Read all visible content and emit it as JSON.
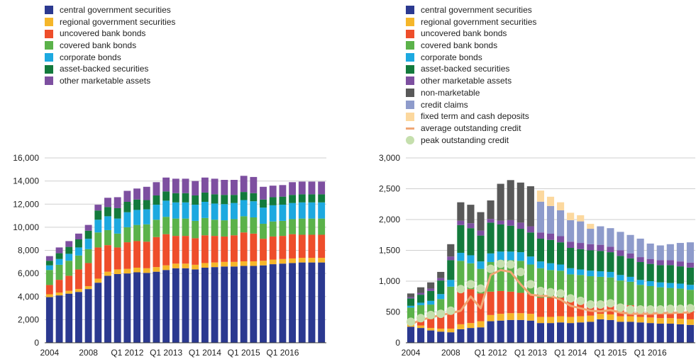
{
  "chart_data": [
    {
      "type": "bar",
      "stacked": true,
      "ylim": [
        0,
        16000
      ],
      "yticks": [
        "0",
        "2,000",
        "4,000",
        "6,000",
        "8,000",
        "10,000",
        "12,000",
        "14,000",
        "16,000"
      ],
      "xtick_labels": [
        {
          "label": "2004",
          "index": 0
        },
        {
          "label": "2008",
          "index": 4
        },
        {
          "label": "Q1 2012",
          "index": 8
        },
        {
          "label": "Q1 2013",
          "index": 12
        },
        {
          "label": "Q1 2014",
          "index": 16
        },
        {
          "label": "Q1 2015",
          "index": 20
        },
        {
          "label": "Q1 2016",
          "index": 24
        }
      ],
      "grid": true,
      "legend_position": "top-left",
      "series": [
        {
          "name": "central government securities",
          "color": "#2B3990",
          "values": [
            3950,
            4100,
            4250,
            4400,
            4650,
            5200,
            5800,
            5950,
            6000,
            6100,
            6050,
            6150,
            6300,
            6450,
            6450,
            6350,
            6500,
            6550,
            6600,
            6600,
            6650,
            6650,
            6700,
            6800,
            6850,
            6900,
            6950,
            6950,
            6950
          ]
        },
        {
          "name": "regional government securities",
          "color": "#F5B62A",
          "values": [
            250,
            250,
            250,
            250,
            250,
            350,
            350,
            400,
            400,
            400,
            400,
            400,
            400,
            400,
            400,
            400,
            400,
            400,
            400,
            400,
            400,
            400,
            400,
            400,
            400,
            400,
            400,
            400,
            400
          ]
        },
        {
          "name": "uncovered bank bonds",
          "color": "#EE4E2B",
          "values": [
            800,
            1100,
            1300,
            1700,
            2000,
            2700,
            2300,
            1900,
            2300,
            2300,
            2300,
            2600,
            2700,
            2400,
            2400,
            2300,
            2400,
            2300,
            2200,
            2300,
            2500,
            2400,
            1900,
            2000,
            2000,
            2100,
            2000,
            2000,
            2000
          ]
        },
        {
          "name": "covered bank bonds",
          "color": "#5BB24A",
          "values": [
            1300,
            1300,
            1300,
            1200,
            1200,
            1300,
            1300,
            1200,
            1300,
            1400,
            1500,
            1500,
            1500,
            1500,
            1500,
            1500,
            1500,
            1400,
            1400,
            1400,
            1400,
            1400,
            1300,
            1300,
            1300,
            1300,
            1400,
            1400,
            1400
          ]
        },
        {
          "name": "corporate bonds",
          "color": "#1DA9E0",
          "values": [
            400,
            500,
            600,
            700,
            900,
            1100,
            1200,
            1300,
            1300,
            1300,
            1300,
            1300,
            1400,
            1400,
            1400,
            1400,
            1400,
            1400,
            1400,
            1400,
            1400,
            1400,
            1400,
            1400,
            1400,
            1400,
            1400,
            1400,
            1400
          ]
        },
        {
          "name": "asset-backed securities",
          "color": "#137A3C",
          "values": [
            400,
            500,
            600,
            700,
            700,
            800,
            800,
            900,
            900,
            900,
            800,
            800,
            800,
            800,
            800,
            800,
            800,
            800,
            800,
            700,
            700,
            700,
            700,
            700,
            700,
            700,
            700,
            700,
            700
          ]
        },
        {
          "name": "other marketable assets",
          "color": "#7D4FA0",
          "values": [
            400,
            500,
            500,
            500,
            500,
            500,
            800,
            950,
            950,
            950,
            1150,
            1150,
            1200,
            1250,
            1250,
            1250,
            1300,
            1350,
            1300,
            1300,
            1400,
            1400,
            1100,
            1000,
            1000,
            1100,
            1100,
            1100,
            1100
          ]
        }
      ]
    },
    {
      "type": "bar",
      "stacked": true,
      "ylim": [
        0,
        3000
      ],
      "yticks": [
        "0",
        "500",
        "1,000",
        "1,500",
        "2,000",
        "2,500",
        "3,000"
      ],
      "xtick_labels": [
        {
          "label": "2004",
          "index": 0
        },
        {
          "label": "2008",
          "index": 4
        },
        {
          "label": "Q1 2012",
          "index": 8
        },
        {
          "label": "Q1 2013",
          "index": 12
        },
        {
          "label": "Q1 2014",
          "index": 16
        },
        {
          "label": "Q1 2015",
          "index": 20
        },
        {
          "label": "Q1 2016",
          "index": 24
        }
      ],
      "grid": true,
      "legend_position": "top-left",
      "series": [
        {
          "name": "central government securities",
          "color": "#2B3990",
          "values": [
            260,
            240,
            200,
            180,
            170,
            220,
            240,
            250,
            350,
            360,
            370,
            370,
            360,
            320,
            320,
            330,
            320,
            330,
            340,
            380,
            370,
            340,
            340,
            330,
            320,
            310,
            310,
            300,
            290
          ]
        },
        {
          "name": "regional government securities",
          "color": "#F5B62A",
          "values": [
            40,
            40,
            40,
            50,
            60,
            80,
            80,
            100,
            100,
            110,
            110,
            110,
            110,
            100,
            100,
            100,
            100,
            100,
            100,
            90,
            90,
            90,
            90,
            90,
            90,
            90,
            90,
            90,
            90
          ]
        },
        {
          "name": "uncovered bank bonds",
          "color": "#EE4E2B",
          "values": [
            80,
            130,
            150,
            200,
            300,
            550,
            550,
            450,
            380,
            370,
            350,
            330,
            320,
            310,
            310,
            300,
            260,
            250,
            220,
            200,
            200,
            190,
            180,
            170,
            170,
            170,
            160,
            160,
            150
          ]
        },
        {
          "name": "covered bank bonds",
          "color": "#5BB24A",
          "values": [
            190,
            200,
            230,
            280,
            380,
            480,
            420,
            400,
            480,
            500,
            510,
            520,
            480,
            480,
            450,
            440,
            430,
            420,
            420,
            400,
            400,
            390,
            380,
            350,
            340,
            330,
            330,
            330,
            330
          ]
        },
        {
          "name": "corporate bonds",
          "color": "#1DA9E0",
          "values": [
            30,
            40,
            60,
            80,
            110,
            130,
            130,
            120,
            140,
            140,
            140,
            140,
            130,
            110,
            110,
            100,
            100,
            90,
            90,
            90,
            90,
            90,
            80,
            80,
            80,
            80,
            80,
            80,
            80
          ]
        },
        {
          "name": "asset-backed securities",
          "color": "#137A3C",
          "values": [
            120,
            130,
            160,
            220,
            320,
            450,
            440,
            420,
            500,
            440,
            420,
            380,
            390,
            370,
            380,
            360,
            330,
            330,
            330,
            330,
            320,
            310,
            300,
            290,
            280,
            280,
            290,
            280,
            280
          ]
        },
        {
          "name": "other marketable assets",
          "color": "#7D4FA0",
          "values": [
            20,
            30,
            40,
            40,
            60,
            70,
            80,
            80,
            60,
            60,
            90,
            100,
            100,
            100,
            100,
            100,
            100,
            100,
            100,
            100,
            90,
            90,
            80,
            80,
            80,
            80,
            80,
            80,
            80
          ]
        },
        {
          "name": "non-marketable",
          "color": "#595959",
          "values": [
            60,
            90,
            100,
            100,
            200,
            300,
            300,
            300,
            300,
            600,
            650,
            650,
            650,
            0,
            0,
            0,
            0,
            0,
            0,
            0,
            0,
            0,
            0,
            0,
            0,
            0,
            0,
            0,
            0
          ]
        },
        {
          "name": "credit claims",
          "color": "#8E9BCB",
          "values": [
            0,
            0,
            0,
            0,
            0,
            0,
            0,
            0,
            0,
            0,
            0,
            0,
            0,
            500,
            450,
            420,
            350,
            350,
            250,
            300,
            300,
            300,
            300,
            300,
            250,
            240,
            260,
            300,
            330
          ]
        },
        {
          "name": "fixed term and cash deposits",
          "color": "#FCD89E",
          "values": [
            0,
            0,
            0,
            0,
            0,
            0,
            0,
            0,
            0,
            0,
            0,
            0,
            0,
            180,
            150,
            130,
            120,
            100,
            80,
            0,
            0,
            0,
            0,
            0,
            0,
            0,
            0,
            0,
            0
          ]
        }
      ],
      "lines": [
        {
          "name": "average outstanding credit",
          "color": "#F0A775",
          "kind": "line",
          "values": [
            300,
            370,
            410,
            450,
            480,
            520,
            750,
            560,
            1100,
            1180,
            1150,
            950,
            780,
            760,
            760,
            700,
            600,
            560,
            520,
            510,
            530,
            490,
            470,
            470,
            470,
            480,
            480,
            490,
            490
          ]
        },
        {
          "name": "peak outstanding credit",
          "color": "#C5DFAD",
          "kind": "dots",
          "values": [
            340,
            400,
            450,
            470,
            520,
            870,
            950,
            880,
            1200,
            1280,
            1270,
            1150,
            950,
            840,
            820,
            800,
            720,
            680,
            620,
            620,
            640,
            570,
            540,
            540,
            540,
            540,
            550,
            550,
            560
          ]
        }
      ]
    }
  ]
}
